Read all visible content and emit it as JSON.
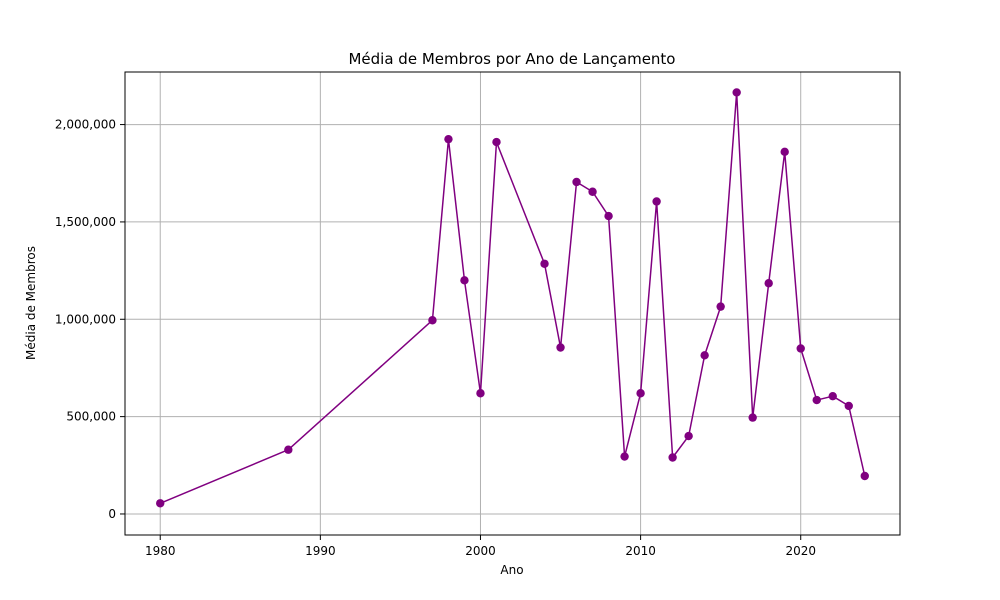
{
  "chart_data": {
    "type": "line",
    "title": "Média de Membros por Ano de Lançamento",
    "xlabel": "Ano",
    "ylabel": "Média de Membros",
    "xlim": [
      1977.8,
      2026.2
    ],
    "ylim": [
      -108000,
      2270000
    ],
    "xticks": [
      1980,
      1990,
      2000,
      2010,
      2020
    ],
    "yticks": [
      0,
      500000,
      1000000,
      1500000,
      2000000
    ],
    "ytick_labels": [
      "0",
      "500,000",
      "1,000,000",
      "1,500,000",
      "2,000,000"
    ],
    "grid": true,
    "marker": "circle",
    "color": "#800080",
    "series": [
      {
        "x": [
          1980,
          1988,
          1997,
          1998,
          1999,
          2000,
          2001,
          2004,
          2005,
          2006,
          2007,
          2008,
          2009,
          2010,
          2011,
          2012,
          2013,
          2014,
          2015,
          2016,
          2017,
          2018,
          2019,
          2020,
          2021,
          2022,
          2023,
          2024
        ],
        "y": [
          55000,
          330000,
          995000,
          1925000,
          1200000,
          620000,
          1910000,
          1285000,
          855000,
          1705000,
          1655000,
          1530000,
          295000,
          620000,
          1605000,
          290000,
          400000,
          815000,
          1065000,
          2165000,
          495000,
          1185000,
          1860000,
          850000,
          585000,
          605000,
          555000,
          195000
        ]
      }
    ]
  }
}
